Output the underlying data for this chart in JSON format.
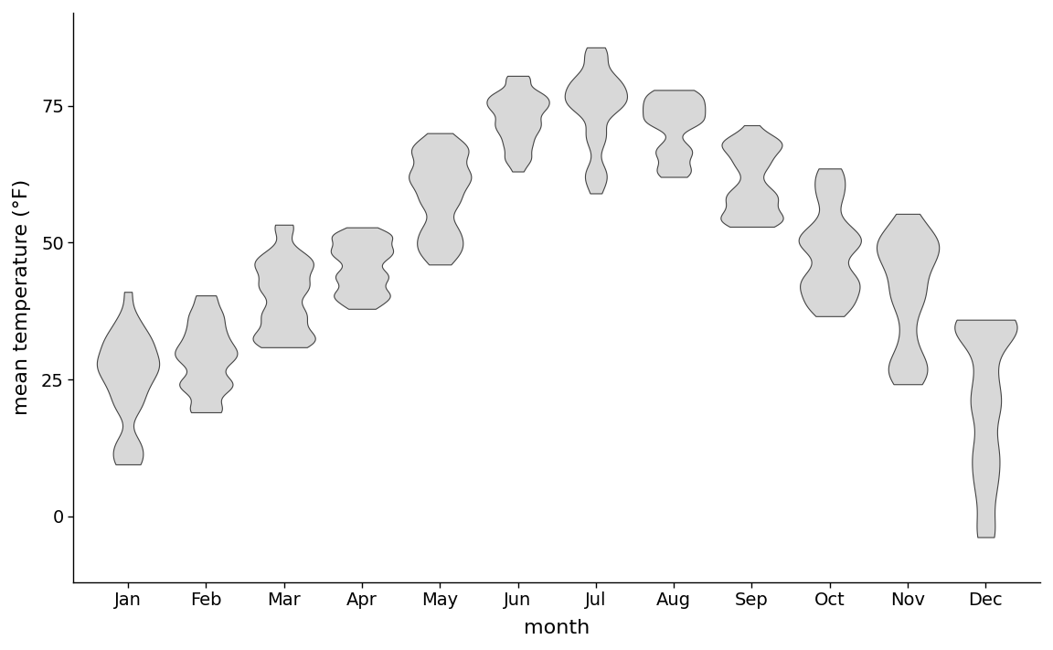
{
  "xlabel": "month",
  "ylabel": "mean temperature (°F)",
  "months": [
    "Jan",
    "Feb",
    "Mar",
    "Apr",
    "May",
    "Jun",
    "Jul",
    "Aug",
    "Sep",
    "Oct",
    "Nov",
    "Dec"
  ],
  "violin_fill_color": "#d8d8d8",
  "violin_edge_color": "#444444",
  "violin_edge_width": 0.8,
  "ylim": [
    -12,
    92
  ],
  "yticks": [
    0,
    25,
    50,
    75
  ],
  "figsize": [
    11.52,
    7.11
  ],
  "dpi": 100,
  "xlabel_fontsize": 16,
  "ylabel_fontsize": 16,
  "tick_fontsize": 14,
  "violin_width": 0.8,
  "bw_method": 0.25
}
